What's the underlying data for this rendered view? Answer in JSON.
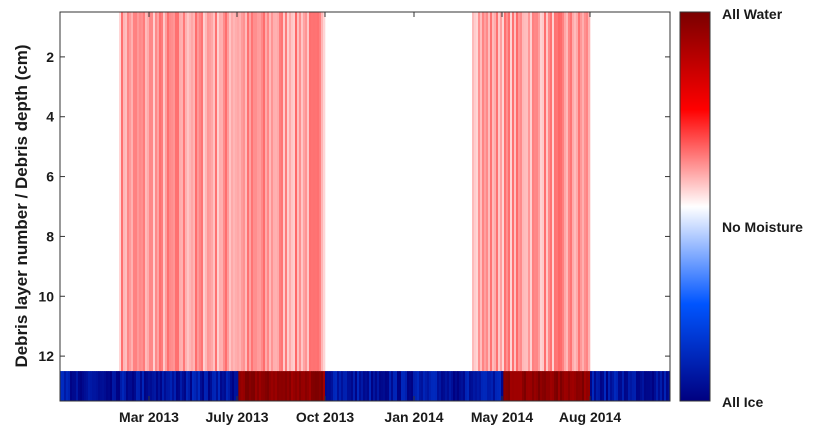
{
  "chart_data": {
    "type": "heatmap",
    "title": "",
    "xlabel": "",
    "ylabel": "Debris layer number / Debris depth (cm)",
    "x_ticks": [
      "Mar 2013",
      "July 2013",
      "Oct 2013",
      "Jan 2014",
      "May 2014",
      "Aug 2014"
    ],
    "y_ticks": [
      2,
      4,
      6,
      8,
      10,
      12
    ],
    "ylim": [
      13.5,
      0.5
    ],
    "y_reversed": true,
    "rows": 13,
    "colorbar": {
      "top_label": "All Water",
      "middle_label": "No Moisture",
      "bottom_label": "All Ice",
      "colors": [
        "#000080",
        "#0055ff",
        "#ffffff",
        "#ff0000",
        "#7a0000"
      ]
    },
    "series": [
      {
        "x_range": [
          "Mar 2013",
          "Oct 2013"
        ],
        "depth_range": [
          0.5,
          12.5
        ],
        "state": "water",
        "intensity": "low-moderate"
      },
      {
        "x_range": [
          "May 2014",
          "Aug 2014"
        ],
        "depth_range": [
          0.5,
          12.5
        ],
        "state": "water",
        "intensity": "low-moderate"
      },
      {
        "x_range": [
          "July 2013",
          "Oct 2013"
        ],
        "depth_range": [
          12.5,
          13.5
        ],
        "state": "water",
        "intensity": "high"
      },
      {
        "x_range": [
          "May 2014",
          "Aug 2014"
        ],
        "depth_range": [
          12.5,
          13.5
        ],
        "state": "water",
        "intensity": "high"
      },
      {
        "x_range": [
          "start",
          "July 2013"
        ],
        "depth_range": [
          12.5,
          13.5
        ],
        "state": "ice",
        "intensity": "high"
      },
      {
        "x_range": [
          "Oct 2013",
          "May 2014"
        ],
        "depth_range": [
          12.5,
          13.5
        ],
        "state": "ice",
        "intensity": "high"
      },
      {
        "x_range": [
          "Aug 2014",
          "end"
        ],
        "depth_range": [
          12.5,
          13.5
        ],
        "state": "ice",
        "intensity": "high"
      }
    ]
  }
}
